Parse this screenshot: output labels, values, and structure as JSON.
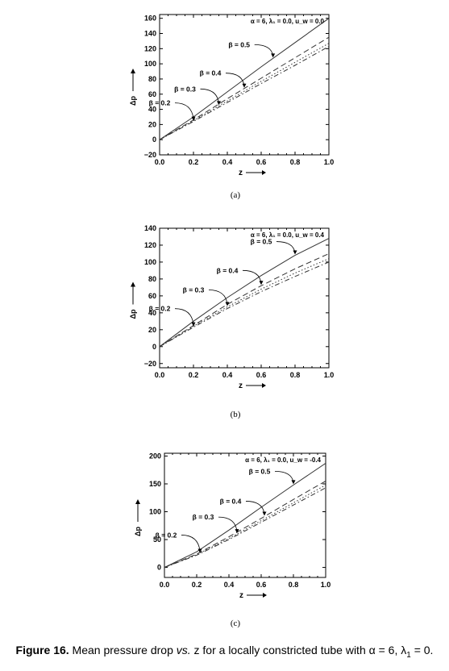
{
  "chart_data": [
    {
      "type": "line",
      "panel_label": "(a)",
      "annotation": "α = 6, λ₁ = 0.0, u_w = 0.0",
      "xlabel": "z",
      "ylabel": "Δp",
      "xlim": [
        0,
        1
      ],
      "ylim": [
        -20,
        165
      ],
      "xticks": [
        0.0,
        0.2,
        0.4,
        0.6,
        0.8,
        1.0
      ],
      "xtick_labels": [
        "0.0",
        "0.2",
        "0.4",
        "0.6",
        "0.8",
        "1.0"
      ],
      "yticks": [
        -20,
        0,
        20,
        40,
        60,
        80,
        100,
        120,
        140,
        160
      ],
      "ytick_labels": [
        "−20",
        "0",
        "20",
        "40",
        "60",
        "80",
        "100",
        "120",
        "140",
        "160"
      ],
      "grid": false,
      "series": [
        {
          "name": "β = 0.5",
          "style": "solid",
          "x": [
            0,
            0.2,
            0.4,
            0.6,
            0.8,
            1.0
          ],
          "y": [
            0,
            30,
            63,
            96,
            128,
            160
          ]
        },
        {
          "name": "β = 0.4",
          "style": "dashed",
          "x": [
            0,
            0.2,
            0.4,
            0.6,
            0.8,
            1.0
          ],
          "y": [
            0,
            26,
            54,
            81,
            108,
            135
          ]
        },
        {
          "name": "β = 0.3",
          "style": "dotted",
          "x": [
            0,
            0.2,
            0.4,
            0.6,
            0.8,
            1.0
          ],
          "y": [
            0,
            25,
            51,
            77,
            102,
            127
          ]
        },
        {
          "name": "β = 0.2",
          "style": "dashdot",
          "x": [
            0,
            0.2,
            0.4,
            0.6,
            0.8,
            1.0
          ],
          "y": [
            0,
            24,
            49,
            74,
            98,
            123
          ]
        }
      ],
      "labels": [
        {
          "text": "β = 0.5",
          "series": 0,
          "at": 0.67
        },
        {
          "text": "β = 0.4",
          "series": 1,
          "at": 0.5
        },
        {
          "text": "β = 0.3",
          "series": 2,
          "at": 0.35
        },
        {
          "text": "β = 0.2",
          "series": 3,
          "at": 0.2
        }
      ]
    },
    {
      "type": "line",
      "panel_label": "(b)",
      "annotation": "α = 6, λ₁ = 0.0, u_w = 0.4",
      "xlabel": "z",
      "ylabel": "Δp",
      "xlim": [
        0,
        1
      ],
      "ylim": [
        -25,
        140
      ],
      "xticks": [
        0.0,
        0.2,
        0.4,
        0.6,
        0.8,
        1.0
      ],
      "xtick_labels": [
        "0.0",
        "0.2",
        "0.4",
        "0.6",
        "0.8",
        "1.0"
      ],
      "yticks": [
        -20,
        0,
        20,
        40,
        60,
        80,
        100,
        120,
        140
      ],
      "ytick_labels": [
        "−20",
        "0",
        "20",
        "40",
        "60",
        "80",
        "100",
        "120",
        "140"
      ],
      "grid": false,
      "series": [
        {
          "name": "β = 0.5",
          "style": "solid",
          "x": [
            0,
            0.2,
            0.4,
            0.6,
            0.8,
            1.0
          ],
          "y": [
            0,
            30,
            58,
            84,
            108,
            128
          ]
        },
        {
          "name": "β = 0.4",
          "style": "dashed",
          "x": [
            0,
            0.2,
            0.4,
            0.6,
            0.8,
            1.0
          ],
          "y": [
            0,
            25,
            50,
            72,
            92,
            110
          ]
        },
        {
          "name": "β = 0.3",
          "style": "dotted",
          "x": [
            0,
            0.2,
            0.4,
            0.6,
            0.8,
            1.0
          ],
          "y": [
            0,
            24,
            47,
            68,
            87,
            104
          ]
        },
        {
          "name": "β = 0.2",
          "style": "dashdot",
          "x": [
            0,
            0.2,
            0.4,
            0.6,
            0.8,
            1.0
          ],
          "y": [
            0,
            23,
            45,
            65,
            83,
            100
          ]
        }
      ],
      "labels": [
        {
          "text": "β = 0.5",
          "series": 0,
          "at": 0.8
        },
        {
          "text": "β = 0.4",
          "series": 1,
          "at": 0.6
        },
        {
          "text": "β = 0.3",
          "series": 2,
          "at": 0.4
        },
        {
          "text": "β = 0.2",
          "series": 3,
          "at": 0.2
        }
      ]
    },
    {
      "type": "line",
      "panel_label": "(c)",
      "annotation": "α = 6, λ₁ = 0.0, u_w = -0.4",
      "xlabel": "z",
      "ylabel": "Δp",
      "xlim": [
        0,
        1
      ],
      "ylim": [
        -18,
        205
      ],
      "xticks": [
        0.0,
        0.2,
        0.4,
        0.6,
        0.8,
        1.0
      ],
      "xtick_labels": [
        "0.0",
        "0.2",
        "0.4",
        "0.6",
        "0.8",
        "1.0"
      ],
      "yticks": [
        0,
        50,
        100,
        150,
        200
      ],
      "ytick_labels": [
        "0",
        "50",
        "100",
        "150",
        "200"
      ],
      "grid": false,
      "series": [
        {
          "name": "β = 0.5",
          "style": "solid",
          "x": [
            0,
            0.2,
            0.4,
            0.6,
            0.8,
            1.0
          ],
          "y": [
            0,
            28,
            67,
            108,
            148,
            187
          ]
        },
        {
          "name": "β = 0.4",
          "style": "dashed",
          "x": [
            0,
            0.2,
            0.4,
            0.6,
            0.8,
            1.0
          ],
          "y": [
            0,
            24,
            55,
            88,
            122,
            155
          ]
        },
        {
          "name": "β = 0.3",
          "style": "dotted",
          "x": [
            0,
            0.2,
            0.4,
            0.6,
            0.8,
            1.0
          ],
          "y": [
            0,
            23,
            52,
            84,
            116,
            148
          ]
        },
        {
          "name": "β = 0.2",
          "style": "dashdot",
          "x": [
            0,
            0.2,
            0.4,
            0.6,
            0.8,
            1.0
          ],
          "y": [
            0,
            22,
            50,
            81,
            112,
            143
          ]
        }
      ],
      "labels": [
        {
          "text": "β = 0.5",
          "series": 0,
          "at": 0.8
        },
        {
          "text": "β = 0.4",
          "series": 1,
          "at": 0.62
        },
        {
          "text": "β = 0.3",
          "series": 2,
          "at": 0.45
        },
        {
          "text": "β = 0.2",
          "series": 3,
          "at": 0.22
        }
      ]
    }
  ],
  "caption": {
    "figure_label": "Figure 16.",
    "text_before": " Mean pressure drop ",
    "vs": "vs.",
    "text_after": " z for a locally constricted tube with α = 6, λ",
    "subscript": "1",
    "text_end": " = 0."
  },
  "colors": {
    "line": "#333333",
    "axis": "#000000"
  }
}
